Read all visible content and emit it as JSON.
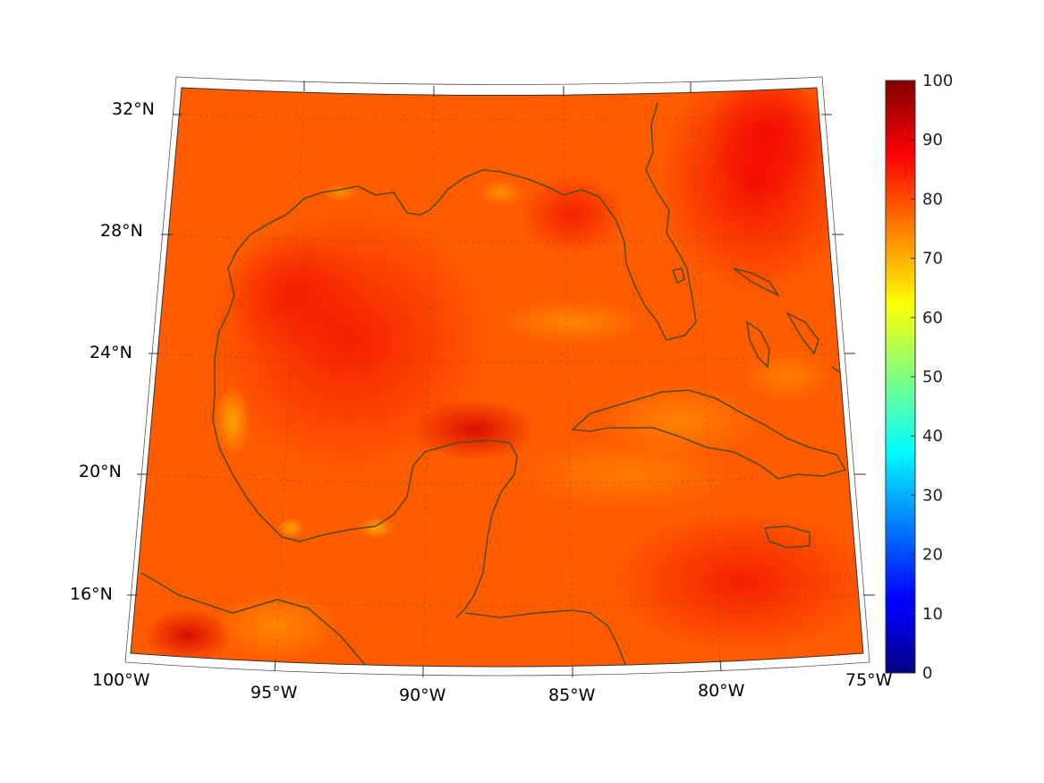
{
  "map": {
    "region": "Gulf of Mexico and Caribbean",
    "lat_labels": [
      {
        "value": 32,
        "text": "32°N"
      },
      {
        "value": 28,
        "text": "28°N"
      },
      {
        "value": 24,
        "text": "24°N"
      },
      {
        "value": 20,
        "text": "20°N"
      },
      {
        "value": 16,
        "text": "16°N"
      }
    ],
    "lon_labels": [
      {
        "value": -100,
        "text": "100°W"
      },
      {
        "value": -95,
        "text": "95°W"
      },
      {
        "value": -90,
        "text": "90°W"
      },
      {
        "value": -85,
        "text": "85°W"
      },
      {
        "value": -80,
        "text": "80°W"
      },
      {
        "value": -75,
        "text": "75°W"
      }
    ],
    "lon_range": [
      -100,
      -75
    ],
    "lat_range": [
      14,
      33
    ],
    "field_color_range": [
      "#ff5a00",
      "#ff2a00",
      "#ff9800"
    ],
    "coastline_color": "#5a4a1a",
    "gridlines": "dotted"
  },
  "colorbar": {
    "min": 0,
    "max": 100,
    "ticks": [
      "0",
      "10",
      "20",
      "30",
      "40",
      "50",
      "60",
      "70",
      "80",
      "90",
      "100"
    ],
    "colormap": "jet"
  }
}
